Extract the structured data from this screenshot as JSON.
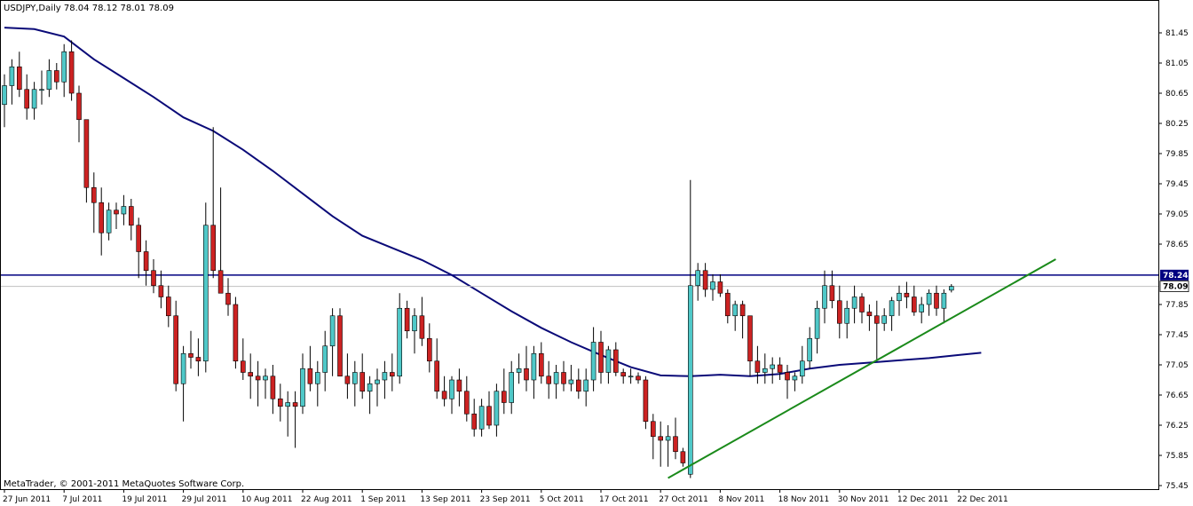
{
  "chart_data": {
    "type": "candlestick",
    "title": "USDJPY,Daily  78.04 78.12 78.01 78.09",
    "footer": "MetaTrader, © 2001-2011 MetaQuotes Software Corp.",
    "ylim": [
      75.35,
      81.6
    ],
    "y_ticks": [
      "81.45",
      "81.05",
      "80.65",
      "80.25",
      "79.85",
      "79.45",
      "79.05",
      "78.65",
      "77.85",
      "77.45",
      "77.05",
      "76.65",
      "76.25",
      "75.85",
      "75.45"
    ],
    "x_ticks": [
      {
        "label": "27 Jun 2011",
        "bar": 0
      },
      {
        "label": "7 Jul 2011",
        "bar": 8
      },
      {
        "label": "19 Jul 2011",
        "bar": 16
      },
      {
        "label": "29 Jul 2011",
        "bar": 24
      },
      {
        "label": "10 Aug 2011",
        "bar": 32
      },
      {
        "label": "22 Aug 2011",
        "bar": 40
      },
      {
        "label": "1 Sep 2011",
        "bar": 48
      },
      {
        "label": "13 Sep 2011",
        "bar": 56
      },
      {
        "label": "23 Sep 2011",
        "bar": 64
      },
      {
        "label": "5 Oct 2011",
        "bar": 72
      },
      {
        "label": "17 Oct 2011",
        "bar": 80
      },
      {
        "label": "27 Oct 2011",
        "bar": 88
      },
      {
        "label": "8 Nov 2011",
        "bar": 96
      },
      {
        "label": "18 Nov 2011",
        "bar": 104
      },
      {
        "label": "30 Nov 2011",
        "bar": 112
      },
      {
        "label": "12 Dec 2011",
        "bar": 120
      },
      {
        "label": "22 Dec 2011",
        "bar": 128
      }
    ],
    "horizontal_line": {
      "value": 78.24,
      "label": "78.24",
      "color": "#000080"
    },
    "current_price": {
      "value": 78.09,
      "label": "78.09",
      "color": "#c0c0c0"
    },
    "bull_color": "#4fc8c8",
    "bear_color": "#cc2222",
    "wick_color": "#000000",
    "ma_color": "#0a0a78",
    "trend_color": "#1a8a1a",
    "trendline": {
      "start": [
        89,
        75.55
      ],
      "end": [
        141,
        78.45
      ]
    },
    "moving_average": [
      [
        0,
        81.52
      ],
      [
        4,
        81.5
      ],
      [
        8,
        81.4
      ],
      [
        12,
        81.1
      ],
      [
        16,
        80.85
      ],
      [
        20,
        80.6
      ],
      [
        24,
        80.33
      ],
      [
        28,
        80.15
      ],
      [
        32,
        79.9
      ],
      [
        36,
        79.62
      ],
      [
        40,
        79.32
      ],
      [
        44,
        79.02
      ],
      [
        48,
        78.76
      ],
      [
        52,
        78.6
      ],
      [
        56,
        78.44
      ],
      [
        60,
        78.24
      ],
      [
        64,
        78.0
      ],
      [
        68,
        77.76
      ],
      [
        72,
        77.54
      ],
      [
        76,
        77.35
      ],
      [
        80,
        77.18
      ],
      [
        84,
        77.02
      ],
      [
        88,
        76.91
      ],
      [
        92,
        76.9
      ],
      [
        96,
        76.92
      ],
      [
        100,
        76.9
      ],
      [
        104,
        76.93
      ],
      [
        108,
        77.0
      ],
      [
        112,
        77.05
      ],
      [
        116,
        77.08
      ],
      [
        120,
        77.11
      ],
      [
        124,
        77.14
      ],
      [
        128,
        77.18
      ],
      [
        131,
        77.21
      ]
    ],
    "candles": [
      [
        80.5,
        80.9,
        80.2,
        80.75
      ],
      [
        80.75,
        81.1,
        80.5,
        81.0
      ],
      [
        81.0,
        81.2,
        80.6,
        80.7
      ],
      [
        80.7,
        80.9,
        80.3,
        80.45
      ],
      [
        80.45,
        80.8,
        80.3,
        80.7
      ],
      [
        80.7,
        80.95,
        80.5,
        80.7
      ],
      [
        80.7,
        81.1,
        80.6,
        80.95
      ],
      [
        80.95,
        81.05,
        80.7,
        80.8
      ],
      [
        80.8,
        81.3,
        80.6,
        81.2
      ],
      [
        81.2,
        81.35,
        80.55,
        80.65
      ],
      [
        80.65,
        80.75,
        80.0,
        80.3
      ],
      [
        80.3,
        80.3,
        79.2,
        79.4
      ],
      [
        79.4,
        79.6,
        78.8,
        79.2
      ],
      [
        79.2,
        79.4,
        78.5,
        78.8
      ],
      [
        78.8,
        79.2,
        78.7,
        79.1
      ],
      [
        79.1,
        79.2,
        78.85,
        79.05
      ],
      [
        79.05,
        79.3,
        78.9,
        79.15
      ],
      [
        79.15,
        79.25,
        78.7,
        78.9
      ],
      [
        78.9,
        79.0,
        78.2,
        78.55
      ],
      [
        78.55,
        78.7,
        78.1,
        78.3
      ],
      [
        78.3,
        78.45,
        78.0,
        78.1
      ],
      [
        78.1,
        78.3,
        77.8,
        77.95
      ],
      [
        77.95,
        78.1,
        77.55,
        77.7
      ],
      [
        77.7,
        77.9,
        76.7,
        76.8
      ],
      [
        76.8,
        77.3,
        76.3,
        77.2
      ],
      [
        77.2,
        77.5,
        77.0,
        77.15
      ],
      [
        77.15,
        77.4,
        76.9,
        77.1
      ],
      [
        77.1,
        79.2,
        76.95,
        78.9
      ],
      [
        78.9,
        80.2,
        78.2,
        78.3
      ],
      [
        78.3,
        79.4,
        78.0,
        78.0
      ],
      [
        78.0,
        78.2,
        77.7,
        77.85
      ],
      [
        77.85,
        77.95,
        77.0,
        77.1
      ],
      [
        77.1,
        77.4,
        76.85,
        76.95
      ],
      [
        76.95,
        77.2,
        76.6,
        76.9
      ],
      [
        76.9,
        77.1,
        76.5,
        76.85
      ],
      [
        76.85,
        77.0,
        76.6,
        76.9
      ],
      [
        76.9,
        77.05,
        76.4,
        76.6
      ],
      [
        76.6,
        76.8,
        76.3,
        76.5
      ],
      [
        76.5,
        76.7,
        76.1,
        76.55
      ],
      [
        76.55,
        76.7,
        75.95,
        76.5
      ],
      [
        76.5,
        77.2,
        76.4,
        77.0
      ],
      [
        77.0,
        77.3,
        76.7,
        76.8
      ],
      [
        76.8,
        77.1,
        76.5,
        76.95
      ],
      [
        76.95,
        77.5,
        76.7,
        77.3
      ],
      [
        77.3,
        77.8,
        76.9,
        77.7
      ],
      [
        77.7,
        77.8,
        76.9,
        76.9
      ],
      [
        76.9,
        77.2,
        76.6,
        76.8
      ],
      [
        76.8,
        77.1,
        76.5,
        76.95
      ],
      [
        76.95,
        77.2,
        76.6,
        76.7
      ],
      [
        76.7,
        76.9,
        76.4,
        76.8
      ],
      [
        76.8,
        77.0,
        76.5,
        76.85
      ],
      [
        76.85,
        77.1,
        76.6,
        76.95
      ],
      [
        76.95,
        77.2,
        76.7,
        76.9
      ],
      [
        76.9,
        78.0,
        76.8,
        77.8
      ],
      [
        77.8,
        77.9,
        77.4,
        77.5
      ],
      [
        77.5,
        77.8,
        77.2,
        77.7
      ],
      [
        77.7,
        77.95,
        77.3,
        77.4
      ],
      [
        77.4,
        77.6,
        76.95,
        77.1
      ],
      [
        77.1,
        77.4,
        76.6,
        76.7
      ],
      [
        76.7,
        76.9,
        76.5,
        76.6
      ],
      [
        76.6,
        76.9,
        76.4,
        76.85
      ],
      [
        76.85,
        77.0,
        76.5,
        76.7
      ],
      [
        76.7,
        76.9,
        76.3,
        76.4
      ],
      [
        76.4,
        76.6,
        76.1,
        76.2
      ],
      [
        76.2,
        76.6,
        76.1,
        76.5
      ],
      [
        76.5,
        76.7,
        76.2,
        76.25
      ],
      [
        76.25,
        76.8,
        76.1,
        76.7
      ],
      [
        76.7,
        77.0,
        76.4,
        76.55
      ],
      [
        76.55,
        77.1,
        76.4,
        76.95
      ],
      [
        76.95,
        77.2,
        76.8,
        77.0
      ],
      [
        77.0,
        77.3,
        76.7,
        76.85
      ],
      [
        76.85,
        77.3,
        76.6,
        77.2
      ],
      [
        77.2,
        77.35,
        76.8,
        76.9
      ],
      [
        76.9,
        77.1,
        76.6,
        76.8
      ],
      [
        76.8,
        77.05,
        76.6,
        76.95
      ],
      [
        76.95,
        77.1,
        76.7,
        76.8
      ],
      [
        76.8,
        77.05,
        76.7,
        76.85
      ],
      [
        76.85,
        77.0,
        76.6,
        76.7
      ],
      [
        76.7,
        77.0,
        76.5,
        76.85
      ],
      [
        76.85,
        77.55,
        76.7,
        77.35
      ],
      [
        77.35,
        77.5,
        76.8,
        76.95
      ],
      [
        76.95,
        77.3,
        76.8,
        77.25
      ],
      [
        77.25,
        77.35,
        76.9,
        76.95
      ],
      [
        76.95,
        77.0,
        76.8,
        76.9
      ],
      [
        76.9,
        77.0,
        76.8,
        76.9
      ],
      [
        76.9,
        76.95,
        76.8,
        76.85
      ],
      [
        76.85,
        76.9,
        76.2,
        76.3
      ],
      [
        76.3,
        76.4,
        75.8,
        76.1
      ],
      [
        76.1,
        76.3,
        75.7,
        76.05
      ],
      [
        76.05,
        76.25,
        75.7,
        76.1
      ],
      [
        76.1,
        76.35,
        75.8,
        75.9
      ],
      [
        75.9,
        75.95,
        75.7,
        75.75
      ],
      [
        75.6,
        79.5,
        75.55,
        78.1
      ],
      [
        78.1,
        78.4,
        77.9,
        78.3
      ],
      [
        78.3,
        78.4,
        77.95,
        78.05
      ],
      [
        78.05,
        78.25,
        77.9,
        78.15
      ],
      [
        78.15,
        78.25,
        77.95,
        78.0
      ],
      [
        78.0,
        78.05,
        77.6,
        77.7
      ],
      [
        77.7,
        77.9,
        77.5,
        77.85
      ],
      [
        77.85,
        77.9,
        77.4,
        77.7
      ],
      [
        77.7,
        77.7,
        76.9,
        77.1
      ],
      [
        77.1,
        77.3,
        76.8,
        76.95
      ],
      [
        76.95,
        77.2,
        76.8,
        77.0
      ],
      [
        77.0,
        77.15,
        76.8,
        77.05
      ],
      [
        77.05,
        77.15,
        76.85,
        76.95
      ],
      [
        76.95,
        77.05,
        76.6,
        76.85
      ],
      [
        76.85,
        76.95,
        76.7,
        76.9
      ],
      [
        76.9,
        77.3,
        76.8,
        77.1
      ],
      [
        77.1,
        77.55,
        77.0,
        77.4
      ],
      [
        77.4,
        77.9,
        77.2,
        77.8
      ],
      [
        77.8,
        78.3,
        77.6,
        78.1
      ],
      [
        78.1,
        78.3,
        77.8,
        77.9
      ],
      [
        77.9,
        78.1,
        77.4,
        77.6
      ],
      [
        77.6,
        77.9,
        77.4,
        77.8
      ],
      [
        77.8,
        78.1,
        77.6,
        77.95
      ],
      [
        77.95,
        78.0,
        77.6,
        77.75
      ],
      [
        77.75,
        77.85,
        77.5,
        77.7
      ],
      [
        77.7,
        77.9,
        77.1,
        77.6
      ],
      [
        77.6,
        77.8,
        77.5,
        77.7
      ],
      [
        77.7,
        77.95,
        77.5,
        77.9
      ],
      [
        77.9,
        78.1,
        77.7,
        78.0
      ],
      [
        78.0,
        78.15,
        77.8,
        77.95
      ],
      [
        77.95,
        78.1,
        77.7,
        77.75
      ],
      [
        77.75,
        77.95,
        77.6,
        77.85
      ],
      [
        77.85,
        78.05,
        77.7,
        78.0
      ],
      [
        78.0,
        78.1,
        77.7,
        77.8
      ],
      [
        77.8,
        78.05,
        77.6,
        78.0
      ],
      [
        78.04,
        78.12,
        78.01,
        78.09
      ]
    ]
  }
}
